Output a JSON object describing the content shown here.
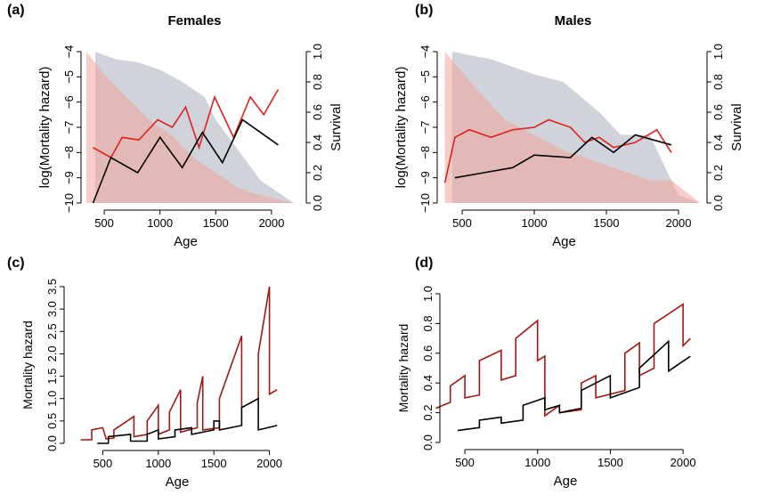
{
  "chart_data": [
    {
      "type": "line",
      "label": "(a)",
      "title": "Females",
      "x_label": "Age",
      "y_label": "log(Mortality hazard)",
      "y2_label": "Survival",
      "xlim": [
        340,
        2280
      ],
      "xticks": [
        500,
        1000,
        1500,
        2000
      ],
      "ylim": [
        -10,
        -4
      ],
      "yticks": [
        {
          "value": -4,
          "label": "−4"
        },
        {
          "value": -5,
          "label": "−5"
        },
        {
          "value": -6,
          "label": "−6"
        },
        {
          "value": -7,
          "label": "−7"
        },
        {
          "value": -8,
          "label": "−8"
        },
        {
          "value": -9,
          "label": "−9"
        },
        {
          "value": -10,
          "label": "−10"
        }
      ],
      "y2lim": [
        0,
        1
      ],
      "y2ticks": [
        {
          "value": 0,
          "label": "0.0"
        },
        {
          "value": 0.2,
          "label": "0.2"
        },
        {
          "value": 0.4,
          "label": "0.4"
        },
        {
          "value": 0.6,
          "label": "0.6"
        },
        {
          "value": 0.8,
          "label": "0.8"
        },
        {
          "value": 1,
          "label": "1.0"
        }
      ],
      "series": [
        {
          "axis": "y2",
          "fill": true,
          "color": "#a9aebb",
          "x": [
            420,
            600,
            800,
            1000,
            1200,
            1400,
            1500,
            1700,
            1900,
            2200
          ],
          "values": [
            1.0,
            0.95,
            0.93,
            0.88,
            0.8,
            0.7,
            0.55,
            0.35,
            0.15,
            0
          ]
        },
        {
          "axis": "y2",
          "fill": true,
          "color": "#f2a49c",
          "x": [
            340,
            500,
            700,
            900,
            1100,
            1300,
            1500,
            1700,
            1900,
            2200
          ],
          "values": [
            1.0,
            0.85,
            0.7,
            0.55,
            0.45,
            0.3,
            0.2,
            0.1,
            0.05,
            0
          ]
        },
        {
          "color": "#e0201c",
          "x": [
            400,
            560,
            660,
            810,
            980,
            1110,
            1230,
            1350,
            1490,
            1660,
            1810,
            1930,
            2060
          ],
          "values": [
            -7.8,
            -8.2,
            -7.4,
            -7.5,
            -6.7,
            -7.0,
            -6.2,
            -7.8,
            -5.8,
            -7.4,
            -5.8,
            -6.5,
            -5.5
          ]
        },
        {
          "color": "#000000",
          "x": [
            400,
            560,
            800,
            1000,
            1200,
            1380,
            1560,
            1740,
            2060
          ],
          "values": [
            -10.0,
            -8.2,
            -8.8,
            -7.4,
            -8.6,
            -7.2,
            -8.4,
            -6.7,
            -7.7
          ]
        }
      ]
    },
    {
      "type": "line",
      "label": "(b)",
      "title": "Males",
      "x_label": "Age",
      "y_label": "log(Mortality hazard)",
      "y2_label": "Survival",
      "xlim": [
        364,
        2173
      ],
      "xticks": [
        500,
        1000,
        1500,
        2000
      ],
      "ylim": [
        -10,
        -4
      ],
      "yticks": [
        {
          "value": -4,
          "label": "−4"
        },
        {
          "value": -5,
          "label": "−5"
        },
        {
          "value": -6,
          "label": "−6"
        },
        {
          "value": -7,
          "label": "−7"
        },
        {
          "value": -8,
          "label": "−8"
        },
        {
          "value": -9,
          "label": "−9"
        },
        {
          "value": -10,
          "label": "−10"
        }
      ],
      "y2lim": [
        0,
        1
      ],
      "y2ticks": [
        {
          "value": 0,
          "label": "0.0"
        },
        {
          "value": 0.2,
          "label": "0.2"
        },
        {
          "value": 0.4,
          "label": "0.4"
        },
        {
          "value": 0.6,
          "label": "0.6"
        },
        {
          "value": 0.8,
          "label": "0.8"
        },
        {
          "value": 1,
          "label": "1.0"
        }
      ],
      "series": [
        {
          "axis": "y2",
          "fill": true,
          "color": "#a9aebb",
          "x": [
            430,
            700,
            1000,
            1200,
            1450,
            1600,
            1800,
            2000,
            2150
          ],
          "values": [
            1.0,
            0.95,
            0.85,
            0.8,
            0.6,
            0.45,
            0.45,
            0.05,
            0
          ]
        },
        {
          "axis": "y2",
          "fill": true,
          "color": "#f2a49c",
          "x": [
            380,
            600,
            800,
            1000,
            1200,
            1500,
            1800,
            1950,
            2150
          ],
          "values": [
            1.0,
            0.75,
            0.55,
            0.45,
            0.35,
            0.25,
            0.15,
            0.15,
            0
          ]
        },
        {
          "color": "#e0201c",
          "x": [
            380,
            450,
            550,
            700,
            850,
            1000,
            1100,
            1250,
            1350,
            1450,
            1550,
            1700,
            1850,
            1950
          ],
          "values": [
            -9.2,
            -7.4,
            -7.1,
            -7.4,
            -7.1,
            -7.0,
            -6.7,
            -7.0,
            -7.6,
            -7.4,
            -7.8,
            -7.6,
            -7.1,
            -8.0
          ]
        },
        {
          "color": "#000000",
          "x": [
            450,
            650,
            850,
            1000,
            1250,
            1400,
            1550,
            1700,
            1950
          ],
          "values": [
            -9.0,
            -8.8,
            -8.6,
            -8.1,
            -8.2,
            -7.4,
            -8.0,
            -7.3,
            -7.7
          ]
        }
      ]
    },
    {
      "type": "line",
      "label": "(c)",
      "x_label": "Age",
      "y_label": "Mortality hazard",
      "xlim": [
        200,
        2300
      ],
      "xticks": [
        500,
        1000,
        1500,
        2000
      ],
      "ylim": [
        0,
        3.5
      ],
      "yticks": [
        {
          "value": 0,
          "label": "0.0"
        },
        {
          "value": 0.5,
          "label": "0.5"
        },
        {
          "value": 1,
          "label": "1.0"
        },
        {
          "value": 1.5,
          "label": "1.5"
        },
        {
          "value": 2,
          "label": "2.0"
        },
        {
          "value": 2.5,
          "label": "2.5"
        },
        {
          "value": 3,
          "label": "3.0"
        },
        {
          "value": 3.5,
          "label": "3.5"
        }
      ],
      "series": [
        {
          "color": "#9e1a14",
          "x": [
            300,
            400,
            400,
            500,
            530,
            600,
            600,
            780,
            780,
            900,
            900,
            1000,
            1000,
            1100,
            1100,
            1200,
            1200,
            1350,
            1350,
            1400,
            1400,
            1550,
            1550,
            1750,
            1750,
            1900,
            1900,
            2000,
            2000,
            2070
          ],
          "values": [
            0.08,
            0.08,
            0.3,
            0.35,
            0.1,
            0.12,
            0.3,
            0.6,
            0.15,
            0.2,
            0.5,
            0.85,
            0.2,
            0.3,
            0.7,
            1.2,
            0.25,
            0.35,
            0.9,
            1.5,
            0.3,
            0.35,
            1.0,
            2.4,
            0.8,
            1.0,
            2.0,
            3.5,
            1.1,
            1.2
          ]
        },
        {
          "color": "#000000",
          "x": [
            450,
            550,
            550,
            750,
            750,
            900,
            900,
            1000,
            1000,
            1150,
            1150,
            1300,
            1300,
            1500,
            1500,
            1550,
            1550,
            1750,
            1750,
            1900,
            1900,
            2070
          ],
          "values": [
            0.0,
            0.0,
            0.15,
            0.2,
            0.05,
            0.05,
            0.2,
            0.3,
            0.1,
            0.15,
            0.3,
            0.35,
            0.2,
            0.3,
            0.5,
            0.5,
            0.3,
            0.4,
            0.8,
            1.0,
            0.3,
            0.4
          ]
        }
      ]
    },
    {
      "type": "line",
      "label": "(d)",
      "x_label": "Age",
      "y_label": "Mortality hazard",
      "xlim": [
        365,
        2140
      ],
      "xticks": [
        500,
        1000,
        1500,
        2000
      ],
      "ylim": [
        0,
        1
      ],
      "yticks": [
        {
          "value": 0,
          "label": "0.0"
        },
        {
          "value": 0.2,
          "label": "0.2"
        },
        {
          "value": 0.4,
          "label": "0.4"
        },
        {
          "value": 0.6,
          "label": "0.6"
        },
        {
          "value": 0.8,
          "label": "0.8"
        },
        {
          "value": 1,
          "label": "1.0"
        }
      ],
      "series": [
        {
          "color": "#a01812",
          "x": [
            300,
            400,
            400,
            500,
            500,
            600,
            600,
            750,
            750,
            850,
            850,
            1000,
            1000,
            1050,
            1050,
            1150,
            1150,
            1300,
            1300,
            1400,
            1400,
            1600,
            1600,
            1700,
            1700,
            1800,
            1800,
            2000,
            2000,
            2050
          ],
          "values": [
            0.23,
            0.27,
            0.38,
            0.45,
            0.3,
            0.32,
            0.55,
            0.62,
            0.42,
            0.45,
            0.7,
            0.82,
            0.55,
            0.58,
            0.18,
            0.25,
            0.2,
            0.22,
            0.4,
            0.45,
            0.3,
            0.35,
            0.6,
            0.67,
            0.45,
            0.5,
            0.8,
            0.93,
            0.65,
            0.7
          ]
        },
        {
          "color": "#000000",
          "x": [
            450,
            600,
            600,
            750,
            750,
            900,
            900,
            1050,
            1050,
            1150,
            1150,
            1300,
            1300,
            1500,
            1500,
            1700,
            1700,
            1900,
            1900,
            2050
          ],
          "values": [
            0.08,
            0.1,
            0.15,
            0.17,
            0.13,
            0.15,
            0.25,
            0.3,
            0.22,
            0.25,
            0.2,
            0.23,
            0.35,
            0.45,
            0.3,
            0.37,
            0.5,
            0.68,
            0.48,
            0.58
          ]
        }
      ]
    }
  ]
}
